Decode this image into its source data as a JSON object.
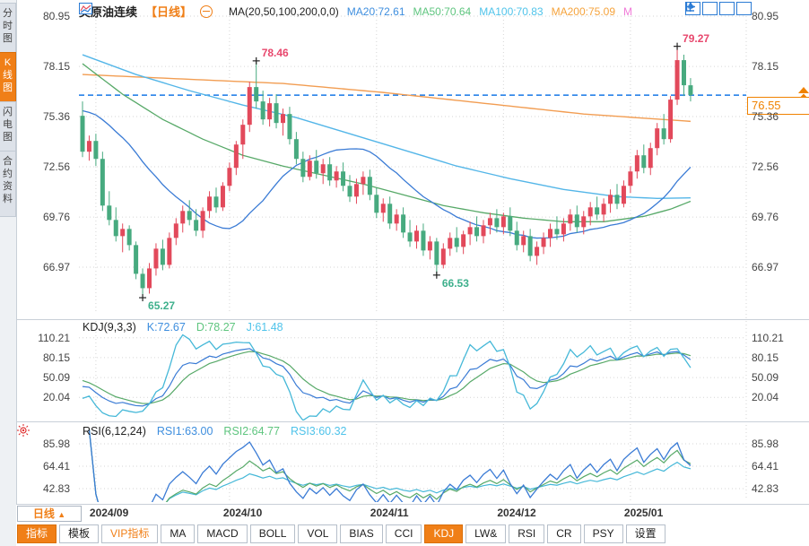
{
  "header": {
    "title": "美原油连续",
    "period_tag": "【日线】",
    "ma_formula": "MA(20,50,100,200,0,0)",
    "ma20_label": "MA20:72.61",
    "ma50_label": "MA50:70.64",
    "ma100_label": "MA100:70.83",
    "ma200_label": "MA200:75.09",
    "ma_extra_label": "M"
  },
  "sidebar": {
    "tabs": [
      {
        "label": "分时图",
        "active": false
      },
      {
        "label": "K线图",
        "active": true
      },
      {
        "label": "闪电图",
        "active": false
      },
      {
        "label": "合约资料",
        "active": false
      }
    ]
  },
  "colors": {
    "up": "#e2495b",
    "down": "#47aa7f",
    "ma20": "#3a7bd5",
    "ma50": "#57a968",
    "ma100": "#54b6e8",
    "ma200": "#f29d52",
    "k": "#3a7bd5",
    "d": "#57a968",
    "j": "#45b8d8",
    "accent": "#f08200",
    "dashed_line": "#1677e6",
    "ann_high": "#e8476d",
    "ann_low": "#3eb08c",
    "grid": "#d6d6d6",
    "marker": "#222222"
  },
  "chart_data": {
    "type": "candlestick+indicators",
    "main": {
      "price_axis": [
        {
          "text": "80.95",
          "v": 80.95
        },
        {
          "text": "78.15",
          "v": 78.15
        },
        {
          "text": "75.36",
          "v": 75.36
        },
        {
          "text": "72.56",
          "v": 72.56
        },
        {
          "text": "69.76",
          "v": 69.76
        },
        {
          "text": "66.97",
          "v": 66.97
        }
      ],
      "current_price": "76.55",
      "current_price_value": 76.55,
      "annotations": [
        {
          "index": 26,
          "price": 78.46,
          "label": "78.46",
          "type": "high"
        },
        {
          "index": 89,
          "price": 79.27,
          "label": "79.27",
          "type": "high"
        },
        {
          "index": 9,
          "price": 65.27,
          "label": "65.27",
          "type": "low"
        },
        {
          "index": 53,
          "price": 66.53,
          "label": "66.53",
          "type": "low"
        }
      ],
      "ohlc": [
        [
          75.4,
          76.2,
          73.1,
          73.4
        ],
        [
          73.4,
          74.3,
          72.9,
          74.0
        ],
        [
          74.0,
          74.4,
          72.6,
          73.0
        ],
        [
          73.0,
          73.4,
          70.1,
          70.4
        ],
        [
          70.4,
          71.2,
          69.3,
          69.6
        ],
        [
          69.6,
          70.3,
          68.4,
          68.7
        ],
        [
          68.7,
          69.4,
          67.8,
          69.1
        ],
        [
          69.1,
          69.3,
          67.9,
          68.2
        ],
        [
          68.2,
          68.4,
          66.3,
          66.6
        ],
        [
          66.6,
          66.9,
          65.27,
          65.8
        ],
        [
          65.8,
          67.2,
          65.5,
          66.9
        ],
        [
          66.9,
          68.3,
          66.5,
          68.0
        ],
        [
          68.0,
          68.5,
          66.8,
          67.1
        ],
        [
          67.1,
          68.9,
          66.9,
          68.6
        ],
        [
          68.6,
          69.7,
          68.2,
          69.4
        ],
        [
          69.4,
          70.4,
          68.9,
          70.1
        ],
        [
          70.1,
          70.7,
          69.3,
          69.6
        ],
        [
          69.6,
          70.2,
          68.7,
          69.0
        ],
        [
          69.0,
          70.3,
          68.6,
          70.1
        ],
        [
          70.1,
          71.2,
          69.7,
          70.9
        ],
        [
          70.9,
          71.4,
          70.0,
          70.3
        ],
        [
          70.3,
          71.7,
          70.1,
          71.5
        ],
        [
          71.5,
          72.8,
          71.2,
          72.5
        ],
        [
          72.5,
          74.0,
          72.1,
          73.8
        ],
        [
          73.8,
          75.2,
          73.0,
          74.9
        ],
        [
          74.9,
          77.3,
          74.5,
          77.0
        ],
        [
          77.0,
          78.46,
          75.8,
          76.2
        ],
        [
          76.2,
          76.8,
          74.9,
          75.2
        ],
        [
          75.2,
          76.4,
          74.8,
          76.1
        ],
        [
          76.1,
          76.6,
          74.7,
          75.0
        ],
        [
          75.0,
          75.8,
          74.3,
          75.5
        ],
        [
          75.5,
          75.9,
          73.8,
          74.1
        ],
        [
          74.1,
          74.5,
          72.7,
          73.0
        ],
        [
          73.0,
          73.4,
          71.7,
          72.0
        ],
        [
          72.0,
          73.2,
          71.8,
          72.9
        ],
        [
          72.9,
          73.5,
          71.9,
          72.2
        ],
        [
          72.2,
          73.0,
          71.6,
          72.7
        ],
        [
          72.7,
          73.1,
          71.5,
          71.8
        ],
        [
          71.8,
          72.6,
          71.4,
          72.3
        ],
        [
          72.3,
          72.8,
          71.2,
          71.5
        ],
        [
          71.5,
          72.1,
          70.6,
          70.9
        ],
        [
          70.9,
          71.9,
          70.5,
          71.6
        ],
        [
          71.6,
          72.3,
          71.0,
          72.0
        ],
        [
          72.0,
          72.4,
          70.7,
          71.0
        ],
        [
          71.0,
          71.4,
          69.7,
          70.0
        ],
        [
          70.0,
          70.8,
          69.5,
          70.5
        ],
        [
          70.5,
          70.9,
          69.1,
          69.4
        ],
        [
          69.4,
          70.2,
          69.0,
          69.9
        ],
        [
          69.9,
          70.3,
          68.6,
          68.9
        ],
        [
          68.9,
          69.6,
          68.1,
          68.4
        ],
        [
          68.4,
          69.3,
          68.0,
          69.0
        ],
        [
          69.0,
          69.4,
          67.6,
          67.9
        ],
        [
          67.9,
          68.7,
          67.4,
          68.4
        ],
        [
          68.4,
          68.6,
          66.53,
          67.1
        ],
        [
          67.1,
          68.3,
          66.9,
          68.0
        ],
        [
          68.0,
          68.9,
          67.6,
          68.6
        ],
        [
          68.6,
          69.2,
          67.8,
          68.1
        ],
        [
          68.1,
          69.0,
          67.7,
          68.8
        ],
        [
          68.8,
          69.5,
          68.2,
          69.2
        ],
        [
          69.2,
          69.8,
          68.4,
          68.7
        ],
        [
          68.7,
          69.6,
          68.3,
          69.3
        ],
        [
          69.3,
          70.0,
          68.8,
          69.7
        ],
        [
          69.7,
          70.2,
          68.9,
          69.2
        ],
        [
          69.2,
          70.0,
          68.8,
          69.8
        ],
        [
          69.8,
          70.3,
          68.7,
          69.0
        ],
        [
          69.0,
          69.5,
          67.9,
          68.2
        ],
        [
          68.2,
          69.0,
          67.8,
          68.7
        ],
        [
          68.7,
          69.1,
          67.3,
          67.6
        ],
        [
          67.6,
          68.4,
          67.1,
          68.1
        ],
        [
          68.1,
          68.9,
          67.7,
          68.6
        ],
        [
          68.6,
          69.4,
          68.1,
          69.1
        ],
        [
          69.1,
          69.8,
          68.5,
          68.8
        ],
        [
          68.8,
          69.7,
          68.4,
          69.4
        ],
        [
          69.4,
          70.2,
          69.0,
          69.9
        ],
        [
          69.9,
          70.4,
          68.9,
          69.2
        ],
        [
          69.2,
          70.1,
          68.8,
          69.8
        ],
        [
          69.8,
          70.6,
          69.3,
          70.3
        ],
        [
          70.3,
          70.9,
          69.6,
          69.9
        ],
        [
          69.9,
          70.8,
          69.5,
          70.5
        ],
        [
          70.5,
          71.3,
          70.0,
          71.0
        ],
        [
          71.0,
          71.6,
          70.2,
          70.5
        ],
        [
          70.5,
          71.8,
          70.3,
          71.5
        ],
        [
          71.5,
          72.6,
          71.1,
          72.3
        ],
        [
          72.3,
          73.5,
          71.9,
          73.2
        ],
        [
          73.2,
          73.8,
          72.2,
          72.5
        ],
        [
          72.5,
          73.9,
          72.1,
          73.6
        ],
        [
          73.6,
          75.0,
          73.2,
          74.7
        ],
        [
          74.7,
          75.5,
          73.8,
          74.1
        ],
        [
          74.1,
          76.5,
          73.9,
          76.3
        ],
        [
          76.3,
          79.27,
          76.0,
          78.5
        ],
        [
          78.5,
          78.8,
          76.5,
          77.1
        ],
        [
          77.1,
          77.5,
          76.2,
          76.55
        ]
      ],
      "ma50_keypoints": [
        [
          0,
          78.3
        ],
        [
          6,
          76.6
        ],
        [
          12,
          75.2
        ],
        [
          18,
          74.1
        ],
        [
          24,
          73.2
        ],
        [
          30,
          72.6
        ],
        [
          36,
          72.1
        ],
        [
          42,
          71.6
        ],
        [
          48,
          71.0
        ],
        [
          54,
          70.4
        ],
        [
          60,
          70.0
        ],
        [
          66,
          69.7
        ],
        [
          72,
          69.5
        ],
        [
          78,
          69.5
        ],
        [
          84,
          69.8
        ],
        [
          88,
          70.2
        ],
        [
          91,
          70.64
        ]
      ],
      "ma100_keypoints": [
        [
          0,
          78.8
        ],
        [
          8,
          77.7
        ],
        [
          16,
          76.8
        ],
        [
          24,
          76.0
        ],
        [
          32,
          75.3
        ],
        [
          40,
          74.4
        ],
        [
          48,
          73.5
        ],
        [
          56,
          72.6
        ],
        [
          64,
          71.9
        ],
        [
          72,
          71.3
        ],
        [
          80,
          70.9
        ],
        [
          86,
          70.8
        ],
        [
          91,
          70.83
        ]
      ],
      "ma200_keypoints": [
        [
          0,
          77.7
        ],
        [
          15,
          77.45
        ],
        [
          30,
          77.2
        ],
        [
          45,
          76.7
        ],
        [
          60,
          76.1
        ],
        [
          75,
          75.5
        ],
        [
          91,
          75.09
        ]
      ]
    },
    "x_axis": {
      "labels": [
        {
          "text": "2024/09",
          "index": 2
        },
        {
          "text": "2024/10",
          "index": 22
        },
        {
          "text": "2024/11",
          "index": 44
        },
        {
          "text": "2024/12",
          "index": 63
        },
        {
          "text": "2025/01",
          "index": 82
        }
      ]
    },
    "kdj": {
      "formula": "KDJ(9,3,3)",
      "k_label": "K:72.67",
      "d_label": "D:78.27",
      "j_label": "J:61.48",
      "params": [
        9,
        3,
        3
      ],
      "axis": [
        {
          "text": "110.21",
          "v": 110.21
        },
        {
          "text": "80.15",
          "v": 80.15
        },
        {
          "text": "50.09",
          "v": 50.09
        },
        {
          "text": "20.04",
          "v": 20.04
        }
      ]
    },
    "rsi": {
      "formula": "RSI(6,12,24)",
      "rsi1_label": "RSI1:63.00",
      "rsi2_label": "RSI2:64.77",
      "rsi3_label": "RSI3:60.32",
      "periods": [
        6,
        12,
        24
      ],
      "axis": [
        {
          "text": "85.98",
          "v": 85.98
        },
        {
          "text": "64.41",
          "v": 64.41
        },
        {
          "text": "42.83",
          "v": 42.83
        }
      ]
    }
  },
  "bottom": {
    "period_button": "日线",
    "period_arrow": "▲",
    "toolbar": [
      {
        "label": "指标",
        "style": "active"
      },
      {
        "label": "模板",
        "style": ""
      },
      {
        "label": "VIP指标",
        "style": "vip"
      },
      {
        "label": "MA",
        "style": ""
      },
      {
        "label": "MACD",
        "style": ""
      },
      {
        "label": "BOLL",
        "style": ""
      },
      {
        "label": "VOL",
        "style": ""
      },
      {
        "label": "BIAS",
        "style": ""
      },
      {
        "label": "CCI",
        "style": ""
      },
      {
        "label": "KDJ",
        "style": "active"
      },
      {
        "label": "LW&",
        "style": ""
      },
      {
        "label": "RSI",
        "style": ""
      },
      {
        "label": "CR",
        "style": ""
      },
      {
        "label": "PSY",
        "style": ""
      },
      {
        "label": "设置",
        "style": ""
      }
    ]
  }
}
